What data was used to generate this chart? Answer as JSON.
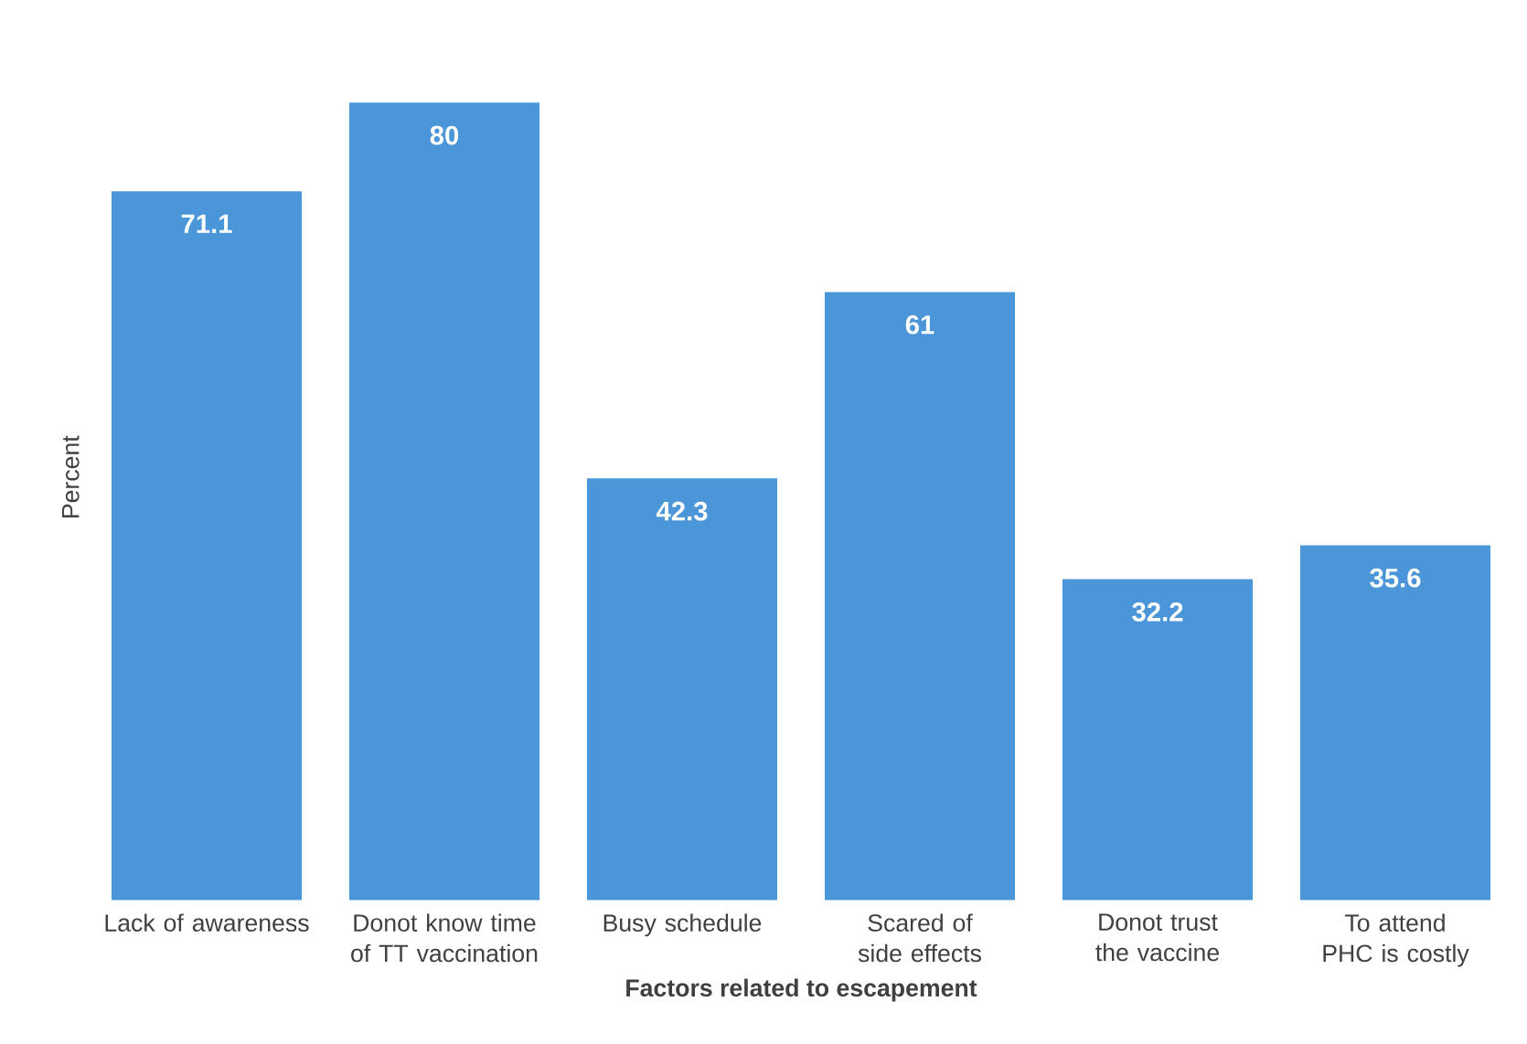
{
  "chart_data": {
    "type": "bar",
    "xlabel": "Factors related to escapement",
    "ylabel": "Percent",
    "categories": [
      "Lack of awareness",
      "Donot know time of TT vaccination",
      "Busy schedule",
      "Scared of side effects",
      "Donot trust the vaccine",
      "To attend PHC is costly"
    ],
    "values": [
      71.1,
      80,
      42.3,
      61,
      32.2,
      35.6
    ],
    "color": "#4a96d9",
    "tick_labels": "x",
    "data_labels": true
  }
}
